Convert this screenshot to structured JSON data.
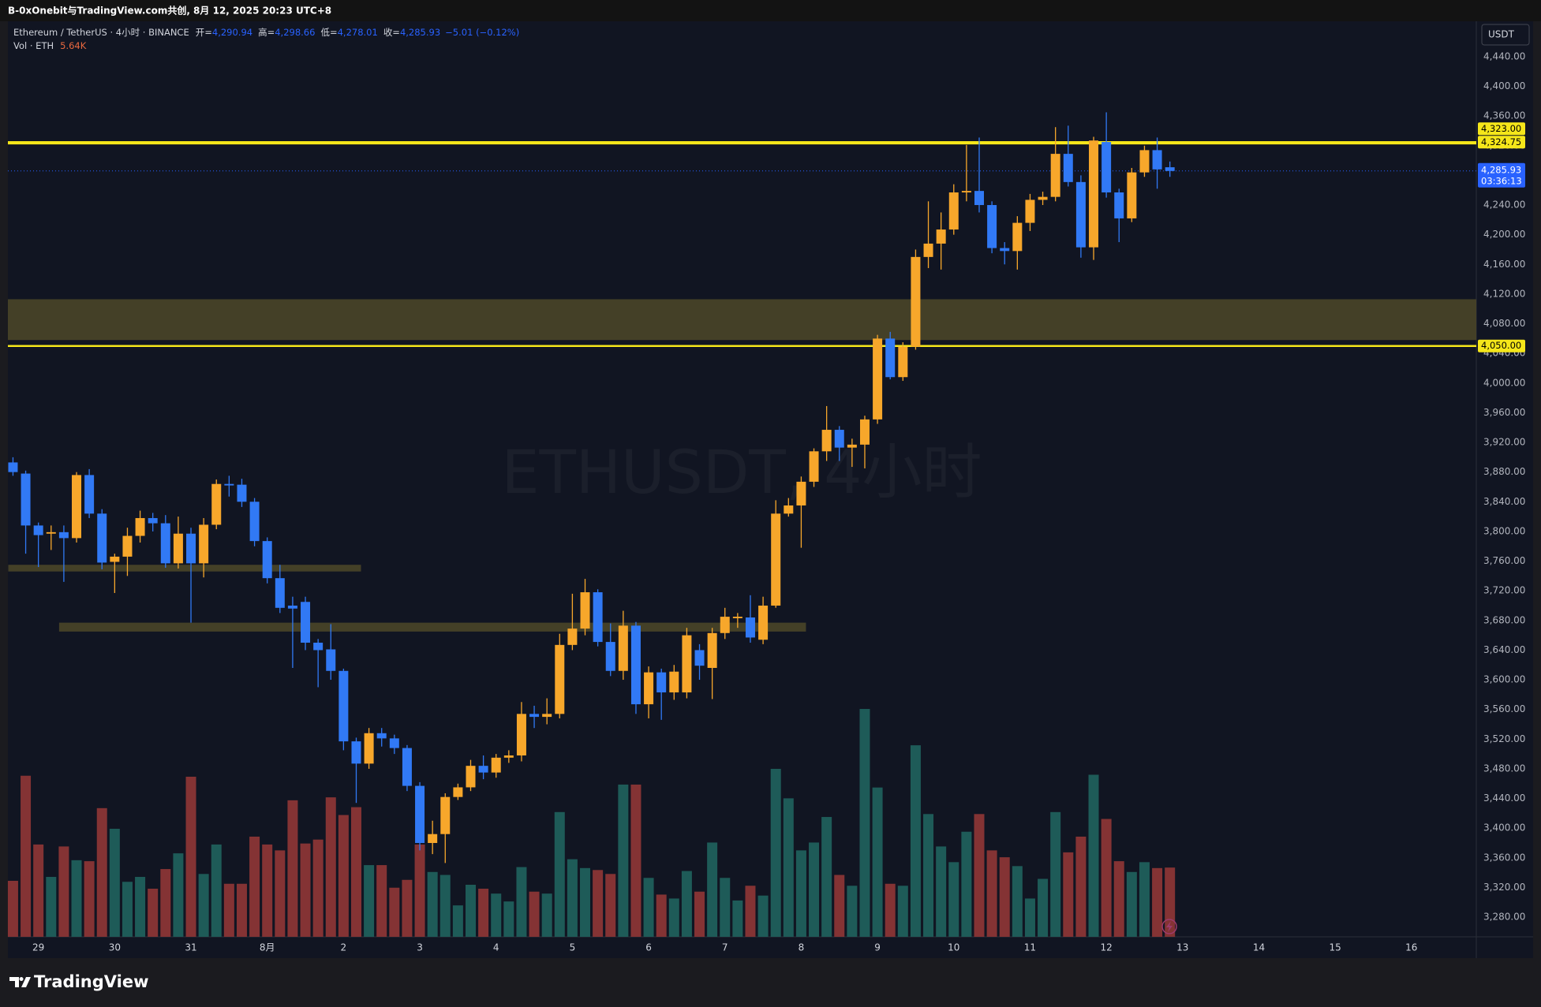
{
  "header": {
    "title": "B-0xOnebit与TradingView.com共创, 8月 12, 2025 20:23 UTC+8",
    "brand": "TradingView"
  },
  "chart_data": {
    "type": "candlestick",
    "legend": {
      "symbol": "Ethereum / TetherUS · 4小时 · BINANCE",
      "fields": [
        {
          "key": "开=",
          "value": "4,290.94"
        },
        {
          "key": "高=",
          "value": "4,298.66"
        },
        {
          "key": "低=",
          "value": "4,278.01"
        },
        {
          "key": "收=",
          "value": "4,285.93"
        }
      ],
      "change": "−5.01 (−0.12%)",
      "vol_name": "Vol · ETH",
      "vol_value": "5.64K"
    },
    "watermark": "ETHUSDT, 4小时",
    "currency": "USDT",
    "candles": {
      "up_color": "#f7a72b",
      "down_color": "#3179f5",
      "open": [
        3893,
        3878,
        3808,
        3797,
        3799,
        3791,
        3876,
        3824,
        3759,
        3766,
        3794,
        3818,
        3811,
        3757,
        3797,
        3757,
        3809,
        3864,
        3863,
        3840,
        3787,
        3737,
        3700,
        3705,
        3650,
        3641,
        3612,
        3517,
        3487,
        3528,
        3521,
        3508,
        3457,
        3380,
        3392,
        3442,
        3455,
        3484,
        3475,
        3495,
        3498,
        3554,
        3550,
        3554,
        3647,
        3669,
        3718,
        3651,
        3612,
        3673,
        3567,
        3610,
        3583,
        3583,
        3640,
        3616,
        3663,
        3683,
        3684,
        3654,
        3700,
        3824,
        3835,
        3867,
        3908,
        3937,
        3913,
        3917,
        3951,
        4060,
        4008,
        4049,
        4170,
        4188,
        4207,
        4257,
        4259,
        4240,
        4182,
        4178,
        4216,
        4247,
        4251,
        4309,
        4271,
        4183,
        4325,
        4257,
        4222,
        4284,
        4314,
        4290.94
      ],
      "high": [
        3900,
        3882,
        3812,
        3808,
        3808,
        3880,
        3884,
        3830,
        3770,
        3805,
        3828,
        3825,
        3822,
        3820,
        3805,
        3818,
        3870,
        3875,
        3871,
        3845,
        3792,
        3755,
        3712,
        3712,
        3655,
        3675,
        3615,
        3522,
        3535,
        3535,
        3526,
        3512,
        3462,
        3410,
        3447,
        3460,
        3492,
        3498,
        3500,
        3505,
        3570,
        3565,
        3575,
        3662,
        3716,
        3736,
        3722,
        3676,
        3693,
        3678,
        3618,
        3615,
        3620,
        3670,
        3648,
        3670,
        3697,
        3690,
        3714,
        3712,
        3842,
        3845,
        3874,
        3912,
        3969,
        3942,
        3925,
        3956,
        4065,
        4069,
        4055,
        4180,
        4245,
        4230,
        4268,
        4321,
        4331,
        4245,
        4190,
        4225,
        4255,
        4258,
        4345,
        4347,
        4280,
        4332,
        4365,
        4262,
        4290,
        4320,
        4331,
        4298.66
      ],
      "low": [
        3875,
        3770,
        3752,
        3775,
        3732,
        3785,
        3818,
        3749,
        3717,
        3740,
        3785,
        3800,
        3751,
        3750,
        3677,
        3738,
        3803,
        3847,
        3833,
        3780,
        3730,
        3690,
        3616,
        3640,
        3590,
        3600,
        3505,
        3434,
        3480,
        3510,
        3500,
        3450,
        3370,
        3365,
        3353,
        3438,
        3450,
        3466,
        3468,
        3488,
        3490,
        3535,
        3540,
        3548,
        3640,
        3660,
        3645,
        3605,
        3600,
        3554,
        3548,
        3546,
        3573,
        3575,
        3600,
        3574,
        3655,
        3670,
        3650,
        3648,
        3697,
        3820,
        3778,
        3860,
        3895,
        3895,
        3887,
        3885,
        3945,
        4005,
        4003,
        4045,
        4155,
        4153,
        4200,
        4245,
        4230,
        4175,
        4160,
        4153,
        4205,
        4240,
        4245,
        4265,
        4169,
        4166,
        4250,
        4190,
        4217,
        4278,
        4262,
        4278.01
      ],
      "close": [
        3880,
        3808,
        3795,
        3799,
        3791,
        3876,
        3824,
        3758,
        3766,
        3794,
        3818,
        3811,
        3757,
        3797,
        3757,
        3809,
        3864,
        3862,
        3840,
        3787,
        3737,
        3697,
        3696,
        3650,
        3640,
        3612,
        3517,
        3487,
        3528,
        3521,
        3508,
        3457,
        3380,
        3392,
        3442,
        3455,
        3484,
        3475,
        3495,
        3498,
        3554,
        3550,
        3554,
        3647,
        3669,
        3718,
        3651,
        3612,
        3673,
        3567,
        3610,
        3583,
        3611,
        3660,
        3619,
        3663,
        3685,
        3685,
        3657,
        3700,
        3824,
        3835,
        3867,
        3908,
        3937,
        3913,
        3917,
        3951,
        4060,
        4008,
        4049,
        4170,
        4188,
        4207,
        4257,
        4259,
        4240,
        4182,
        4178,
        4216,
        4247,
        4251,
        4309,
        4271,
        4183,
        4327,
        4257,
        4222,
        4284,
        4314,
        4288,
        4285.93
      ]
    },
    "volume": {
      "up_color": "#1e5b58",
      "down_color": "#843334",
      "values": [
        4.56,
        13.12,
        7.52,
        4.88,
        7.36,
        6.24,
        6.16,
        10.48,
        8.8,
        4.48,
        4.88,
        3.92,
        5.52,
        6.8,
        13.04,
        5.12,
        7.52,
        4.32,
        4.32,
        8.16,
        7.52,
        7.04,
        11.12,
        7.6,
        7.92,
        11.36,
        9.92,
        10.56,
        5.84,
        5.84,
        4,
        4.64,
        7.52,
        5.28,
        5.04,
        2.56,
        4.24,
        3.92,
        3.52,
        2.88,
        5.68,
        3.68,
        3.52,
        10.16,
        6.32,
        5.6,
        5.44,
        5.12,
        12.4,
        12.4,
        4.8,
        3.44,
        3.12,
        5.36,
        3.68,
        7.68,
        4.8,
        2.96,
        4.16,
        3.36,
        13.68,
        11.28,
        7.04,
        7.68,
        9.76,
        5.04,
        4.16,
        18.56,
        12.16,
        4.32,
        4.16,
        15.6,
        10,
        7.36,
        6.08,
        8.56,
        10,
        7.04,
        6.48,
        5.76,
        3.12,
        4.72,
        10.16,
        6.88,
        8.16,
        13.2,
        9.6,
        6.16,
        5.28,
        6.08,
        5.6,
        5.64
      ]
    },
    "xlim": [
      -0.4,
      115.1
    ],
    "xticks": [
      {
        "value": 2,
        "label": "29"
      },
      {
        "value": 8,
        "label": "30"
      },
      {
        "value": 14,
        "label": "31"
      },
      {
        "value": 20,
        "label": "8月"
      },
      {
        "value": 26,
        "label": "2"
      },
      {
        "value": 32,
        "label": "3"
      },
      {
        "value": 38,
        "label": "4"
      },
      {
        "value": 44,
        "label": "5"
      },
      {
        "value": 50,
        "label": "6"
      },
      {
        "value": 56,
        "label": "7"
      },
      {
        "value": 62,
        "label": "8"
      },
      {
        "value": 68,
        "label": "9"
      },
      {
        "value": 74,
        "label": "10"
      },
      {
        "value": 80,
        "label": "11"
      },
      {
        "value": 86,
        "label": "12"
      },
      {
        "value": 92,
        "label": "13"
      },
      {
        "value": 98,
        "label": "14"
      },
      {
        "value": 104,
        "label": "15"
      },
      {
        "value": 110,
        "label": "16"
      }
    ],
    "ylim": [
      3253.5,
      4487.7
    ],
    "yticks": [
      {
        "value": 3280,
        "label": "3,280.00"
      },
      {
        "value": 3320,
        "label": "3,320.00"
      },
      {
        "value": 3360,
        "label": "3,360.00"
      },
      {
        "value": 3400,
        "label": "3,400.00"
      },
      {
        "value": 3440,
        "label": "3,440.00"
      },
      {
        "value": 3480,
        "label": "3,480.00"
      },
      {
        "value": 3520,
        "label": "3,520.00"
      },
      {
        "value": 3560,
        "label": "3,560.00"
      },
      {
        "value": 3600,
        "label": "3,600.00"
      },
      {
        "value": 3640,
        "label": "3,640.00"
      },
      {
        "value": 3680,
        "label": "3,680.00"
      },
      {
        "value": 3720,
        "label": "3,720.00"
      },
      {
        "value": 3760,
        "label": "3,760.00"
      },
      {
        "value": 3800,
        "label": "3,800.00"
      },
      {
        "value": 3840,
        "label": "3,840.00"
      },
      {
        "value": 3880,
        "label": "3,880.00"
      },
      {
        "value": 3920,
        "label": "3,920.00"
      },
      {
        "value": 3960,
        "label": "3,960.00"
      },
      {
        "value": 4000,
        "label": "4,000.00"
      },
      {
        "value": 4040,
        "label": "4,040.00"
      },
      {
        "value": 4080,
        "label": "4,080.00"
      },
      {
        "value": 4120,
        "label": "4,120.00"
      },
      {
        "value": 4160,
        "label": "4,160.00"
      },
      {
        "value": 4200,
        "label": "4,200.00"
      },
      {
        "value": 4240,
        "label": "4,240.00"
      },
      {
        "value": 4280,
        "label": "4,280.00"
      },
      {
        "value": 4320,
        "label": "4,320.00"
      },
      {
        "value": 4360,
        "label": "4,360.00"
      },
      {
        "value": 4400,
        "label": "4,400.00"
      },
      {
        "value": 4440,
        "label": "4,440.00"
      }
    ],
    "grid": false,
    "zone_color": "#4a4528",
    "zones": [
      {
        "from": 4058,
        "to": 4113
      },
      {
        "from": 3746,
        "to": 3755,
        "start": 0,
        "end": 27
      },
      {
        "from": 3665,
        "to": 3677,
        "start": 4,
        "end": 62
      }
    ],
    "hline_color": "#f5e61a",
    "hlines": [
      {
        "value": 4324.75,
        "label": "4,324.75"
      },
      {
        "value": 4323,
        "label": "4,323.00"
      },
      {
        "value": 4050,
        "label": "4,050.00"
      }
    ],
    "last_price": {
      "value": 4285.93,
      "label": "4,285.93",
      "countdown": "03:36:13",
      "color": "#2962ff"
    }
  }
}
